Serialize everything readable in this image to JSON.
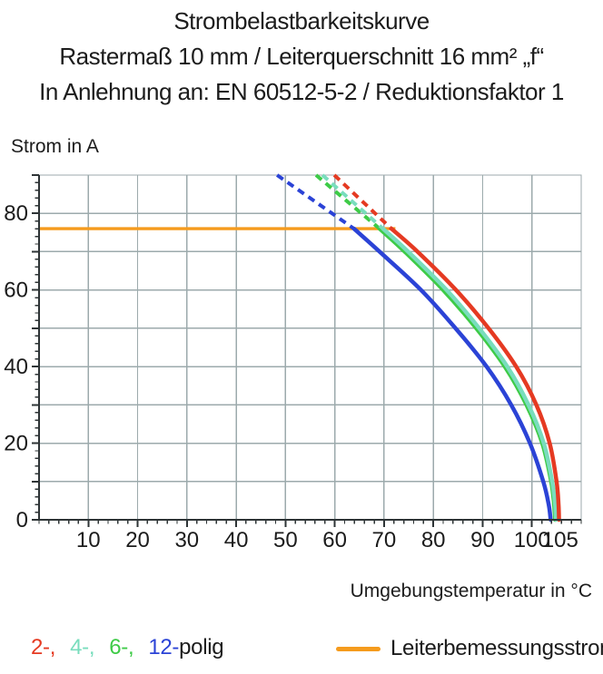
{
  "title": {
    "line1": "Strombelastbarkeitskurve",
    "line2": "Rastermaß 10 mm / Leiterquerschnitt 16 mm² „f“",
    "line3": "In Anlehnung an: EN 60512-5-2 / Reduktionsfaktor 1"
  },
  "chart_data": {
    "type": "line",
    "title": "Strombelastbarkeitskurve",
    "xlabel": "Umgebungstemperatur in °C",
    "ylabel": "Strom in A",
    "xlim": [
      0,
      110
    ],
    "ylim": [
      0,
      90
    ],
    "grid": true,
    "grid_color": "#9caaac",
    "axis_color": "#2e3436",
    "x_gridlines": [
      10,
      20,
      30,
      40,
      50,
      60,
      70,
      80,
      90,
      100
    ],
    "y_gridlines": [
      10,
      20,
      30,
      40,
      50,
      60,
      70,
      80,
      90
    ],
    "x_major_ticks": [
      10,
      20,
      30,
      40,
      50,
      60,
      70,
      80,
      90,
      100,
      105
    ],
    "x_tick_labels": [
      "10",
      "20",
      "30",
      "40",
      "50",
      "60",
      "70",
      "80",
      "90",
      "100",
      "105"
    ],
    "x_minor_tick_step": 2,
    "y_major_ticks": [
      10,
      20,
      30,
      40,
      50,
      60,
      70,
      80,
      90
    ],
    "y_label_ticks": [
      0,
      20,
      40,
      60,
      80
    ],
    "y_minor_tick_step": 2,
    "rated_current_line": {
      "name": "Leiterbemessungsstrom",
      "current_a": 76,
      "x_start": 0,
      "x_end": 72.3,
      "color": "#f59b1d"
    },
    "series": [
      {
        "name": "12-polig",
        "color": "#2b43d6",
        "dashed_points": [
          [
            48.3,
            90
          ],
          [
            63.9,
            76
          ]
        ],
        "solid_points": [
          [
            63.9,
            76
          ],
          [
            69.1,
            70
          ],
          [
            77.5,
            60
          ],
          [
            84.5,
            50
          ],
          [
            90.8,
            40
          ],
          [
            95.8,
            30
          ],
          [
            99.6,
            20
          ],
          [
            102.3,
            10
          ],
          [
            103.4,
            4
          ],
          [
            103.8,
            0
          ]
        ]
      },
      {
        "name": "6-polig",
        "color": "#3ecb47",
        "dashed_points": [
          [
            56.2,
            90
          ],
          [
            69.1,
            76
          ]
        ],
        "solid_points": [
          [
            69.1,
            76
          ],
          [
            74.2,
            70
          ],
          [
            82.0,
            60
          ],
          [
            88.7,
            50
          ],
          [
            94.5,
            40
          ],
          [
            98.9,
            30
          ],
          [
            102.1,
            20
          ],
          [
            103.9,
            10
          ],
          [
            104.5,
            4
          ],
          [
            104.7,
            0
          ]
        ]
      },
      {
        "name": "4-polig",
        "color": "#79ddbd",
        "dashed_points": [
          [
            57.5,
            90
          ],
          [
            69.8,
            76
          ]
        ],
        "solid_points": [
          [
            69.8,
            76
          ],
          [
            74.9,
            70
          ],
          [
            82.7,
            60
          ],
          [
            89.3,
            50
          ],
          [
            95.0,
            40
          ],
          [
            99.3,
            30
          ],
          [
            102.4,
            20
          ],
          [
            104.1,
            10
          ],
          [
            104.7,
            4
          ],
          [
            104.9,
            0
          ]
        ]
      },
      {
        "name": "2-polig",
        "color": "#e53a22",
        "dashed_points": [
          [
            59.9,
            90
          ],
          [
            71.5,
            76
          ]
        ],
        "solid_points": [
          [
            71.5,
            76
          ],
          [
            76.8,
            70
          ],
          [
            84.6,
            60
          ],
          [
            91.2,
            50
          ],
          [
            96.8,
            40
          ],
          [
            100.9,
            30
          ],
          [
            103.6,
            20
          ],
          [
            105.0,
            10
          ],
          [
            105.4,
            4
          ],
          [
            105.5,
            0
          ]
        ]
      }
    ]
  },
  "legend": {
    "pole_entries": [
      {
        "label": "2-,",
        "color": "#e53a22"
      },
      {
        "label": "4-,",
        "color": "#79ddbd"
      },
      {
        "label": "6-,",
        "color": "#3ecb47"
      },
      {
        "label": "12-",
        "color": "#2b43d6"
      }
    ],
    "pole_suffix": "polig",
    "rated_current_label": "Leiterbemessungsstrom",
    "rated_current_color": "#f59b1d"
  }
}
